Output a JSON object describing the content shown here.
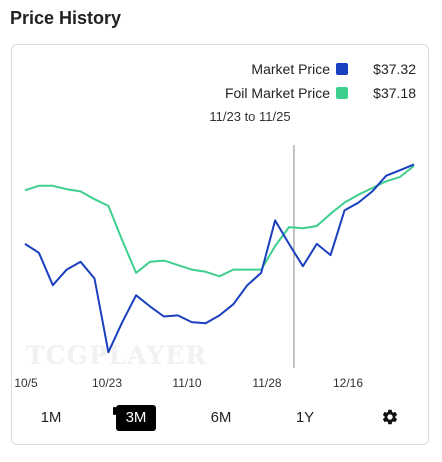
{
  "header": {
    "title": "Price History"
  },
  "legend": [
    {
      "label": "Market Price",
      "color": "#1a3fbf",
      "value": "$37.32"
    },
    {
      "label": "Foil Market Price",
      "color": "#3ecf8e",
      "value": "$37.18"
    }
  ],
  "hover_range": "11/23 to 11/25",
  "watermark": "TCGPLAYER",
  "range_buttons": [
    {
      "label": "1M",
      "active": false
    },
    {
      "label": "3M",
      "active": true
    },
    {
      "label": "6M",
      "active": false
    },
    {
      "label": "1Y",
      "active": false
    }
  ],
  "settings_icon": "gear-icon",
  "chart_data": {
    "type": "line",
    "x_tick_labels": [
      "10/5",
      "10/23",
      "11/10",
      "11/28",
      "12/16"
    ],
    "hover_index": 19,
    "series": [
      {
        "name": "Market Price",
        "color": "#1a3fbf",
        "values": [
          30.2,
          29.4,
          26.5,
          27.9,
          28.6,
          27.1,
          20.5,
          23.2,
          25.6,
          24.6,
          23.7,
          23.8,
          23.2,
          23.1,
          23.8,
          24.8,
          26.5,
          27.6,
          32.3,
          30.2,
          28.2,
          30.2,
          29.2,
          33.2,
          33.9,
          34.9,
          36.3,
          36.8,
          37.32
        ]
      },
      {
        "name": "Foil Market Price",
        "color": "#3ecf8e",
        "values": [
          35.0,
          35.4,
          35.4,
          35.1,
          34.9,
          34.2,
          33.6,
          30.5,
          27.6,
          28.6,
          28.7,
          28.3,
          27.9,
          27.7,
          27.3,
          27.9,
          27.9,
          27.9,
          30.0,
          31.7,
          31.6,
          31.8,
          32.9,
          33.9,
          34.6,
          35.2,
          35.8,
          36.2,
          37.18
        ]
      }
    ]
  }
}
